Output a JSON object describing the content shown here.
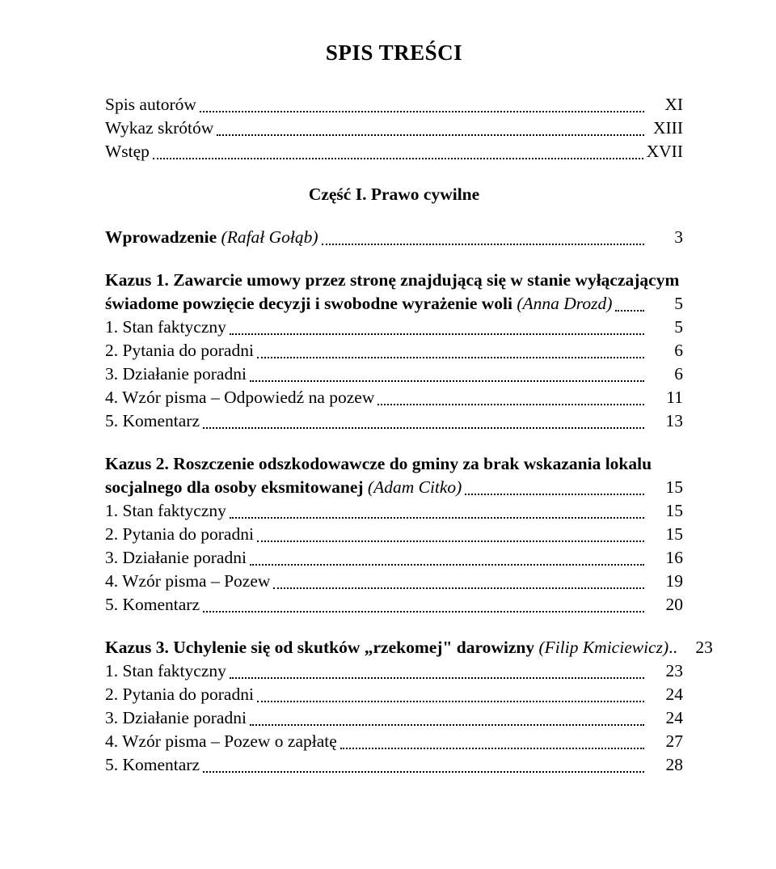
{
  "title": "SPIS TREŚCI",
  "front": [
    {
      "label": "Spis autorów",
      "page": "XI"
    },
    {
      "label": "Wykaz skrótów",
      "page": "XIII"
    },
    {
      "label": "Wstęp",
      "page": "XVII"
    }
  ],
  "part": {
    "label": "Część I. Prawo cywilne"
  },
  "intro": {
    "label_plain": "Wprowadzenie ",
    "label_italic": "(Rafał Gołąb)",
    "page": "3"
  },
  "kazus1": {
    "head_bold": "Kazus 1. Zawarcie umowy przez stronę znajdującą się w stanie wyłączającym świadome powzięcie decyzji i swobodne wyrażenie woli ",
    "head_italic": "(Anna Drozd)",
    "head_page": "5",
    "items": [
      {
        "label": "1. Stan faktyczny",
        "page": "5"
      },
      {
        "label": "2. Pytania do poradni",
        "page": "6"
      },
      {
        "label": "3. Działanie poradni",
        "page": "6"
      },
      {
        "label": "4. Wzór pisma – Odpowiedź na pozew",
        "page": "11"
      },
      {
        "label": "5. Komentarz",
        "page": "13"
      }
    ]
  },
  "kazus2": {
    "head_bold": "Kazus 2. Roszczenie odszkodowawcze do gminy za brak wskazania lokalu socjalnego dla osoby eksmitowanej ",
    "head_italic": "(Adam Citko)",
    "head_page": "15",
    "items": [
      {
        "label": "1. Stan faktyczny",
        "page": "15"
      },
      {
        "label": "2. Pytania do poradni",
        "page": "15"
      },
      {
        "label": "3. Działanie poradni",
        "page": "16"
      },
      {
        "label": "4. Wzór pisma – Pozew",
        "page": "19"
      },
      {
        "label": "5. Komentarz",
        "page": "20"
      }
    ]
  },
  "kazus3": {
    "head_bold": "Kazus 3. Uchylenie się od skutków „rzekomej\" darowizny ",
    "head_italic": "(Filip Kmiciewicz)",
    "head_trail": "..",
    "head_page": "23",
    "items": [
      {
        "label": "1. Stan faktyczny",
        "page": "23"
      },
      {
        "label": "2. Pytania do poradni",
        "page": "24"
      },
      {
        "label": "3. Działanie poradni",
        "page": "24"
      },
      {
        "label": "4. Wzór pisma – Pozew o zapłatę",
        "page": "27"
      },
      {
        "label": "5. Komentarz",
        "page": "28"
      }
    ]
  }
}
